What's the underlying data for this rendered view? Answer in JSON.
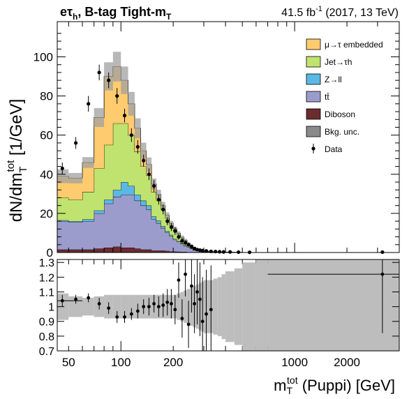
{
  "header": {
    "channel": "eτh, B-tag Tight-mT",
    "lumi": "41.5 fb⁻¹ (2017, 13 TeV)"
  },
  "chart_data": [
    {
      "type": "area",
      "stacked": true,
      "xscale": "log",
      "xlim": [
        43,
        4000
      ],
      "ylim": [
        0,
        118
      ],
      "ylabel": "dN/dm_T^tot [1/GeV]",
      "yticks": [
        0,
        20,
        40,
        60,
        80,
        100
      ],
      "legend_position": "top-right",
      "bin_edges": [
        43,
        50,
        60,
        70,
        80,
        90,
        100,
        110,
        120,
        130,
        140,
        150,
        160,
        170,
        180,
        190,
        200,
        210,
        220,
        230,
        240,
        250,
        260,
        270,
        280,
        290,
        300,
        320,
        340,
        360,
        380,
        400,
        450,
        500,
        600,
        700,
        4000
      ],
      "series": [
        {
          "name": "Diboson",
          "color": "#6b2b30",
          "values": [
            1.5,
            1.5,
            1.5,
            2.0,
            2.5,
            3.0,
            2.5,
            2.5,
            2.0,
            1.5,
            1.5,
            1.0,
            1.0,
            1.0,
            0.8,
            0.5,
            0.5,
            0.4,
            0.3,
            0.3,
            0.2,
            0.2,
            0.1,
            0.1,
            0.1,
            0.1,
            0,
            0,
            0,
            0,
            0,
            0,
            0,
            0,
            0,
            0
          ]
        },
        {
          "name": "tt̄",
          "color": "#9c9ccc",
          "values": [
            14.5,
            14.0,
            14.5,
            18.0,
            22.5,
            25.5,
            27.0,
            27.0,
            24.5,
            22.5,
            20.5,
            16.0,
            14.0,
            11.5,
            9.5,
            8.0,
            6.0,
            5.1,
            4.2,
            3.2,
            2.6,
            1.8,
            1.2,
            0.9,
            0.7,
            0.5,
            0.4,
            0.3,
            0.2,
            0.1,
            0.1,
            0.1,
            0,
            0,
            0,
            0
          ]
        },
        {
          "name": "Z→ll",
          "color": "#5bb8e5",
          "values": [
            0.5,
            0.5,
            1.0,
            1.5,
            2.0,
            3.5,
            6.5,
            4.5,
            3.0,
            2.5,
            2.0,
            1.5,
            1.2,
            1.0,
            0.7,
            0.5,
            0.4,
            0.3,
            0.2,
            0.1,
            0.1,
            0.1,
            0,
            0,
            0,
            0,
            0,
            0,
            0,
            0,
            0,
            0,
            0,
            0,
            0,
            0
          ]
        },
        {
          "name": "Jet→τh",
          "color": "#c0e36f",
          "values": [
            11.5,
            11.0,
            14.0,
            21.5,
            28.0,
            34.0,
            30.0,
            26.0,
            22.0,
            17.5,
            15.5,
            12.5,
            10.5,
            8.5,
            6.5,
            5.0,
            4.5,
            3.5,
            2.8,
            2.4,
            1.6,
            1.4,
            1.2,
            0.8,
            0.6,
            0.4,
            0.3,
            0.2,
            0.2,
            0.1,
            0.1,
            0.1,
            0.1,
            0,
            0,
            0
          ]
        },
        {
          "name": "μ→τ embedded",
          "color": "#fecb6f",
          "values": [
            11.0,
            11.0,
            15.0,
            26.0,
            35.0,
            29.0,
            22.0,
            16.0,
            12.0,
            8.0,
            5.5,
            4.0,
            3.0,
            2.0,
            1.5,
            1.0,
            0.8,
            0.6,
            0.4,
            0.3,
            0.2,
            0.2,
            0.1,
            0.1,
            0.1,
            0.1,
            0.1,
            0,
            0,
            0,
            0,
            0,
            0,
            0,
            0,
            0
          ]
        }
      ],
      "uncertainty": {
        "name": "Bkg. unc.",
        "color": "#a0a0a0",
        "rel_values": [
          0.09,
          0.07,
          0.06,
          0.07,
          0.08,
          0.08,
          0.08,
          0.08,
          0.08,
          0.08,
          0.08,
          0.08,
          0.08,
          0.08,
          0.08,
          0.08,
          0.08,
          0.09,
          0.1,
          0.11,
          0.12,
          0.13,
          0.14,
          0.15,
          0.16,
          0.17,
          0.18,
          0.18,
          0.19,
          0.2,
          0.22,
          0.24,
          0.26,
          0.3,
          0.5,
          0.5
        ]
      },
      "data": {
        "name": "Data",
        "x": [
          46,
          55,
          65,
          75,
          85,
          95,
          105,
          115,
          125,
          135,
          145,
          155,
          165,
          175,
          185,
          195,
          205,
          215,
          225,
          235,
          245,
          255,
          265,
          275,
          285,
          295,
          310,
          330,
          350,
          370,
          390,
          425,
          475,
          550,
          3200
        ],
        "y": [
          43,
          56,
          76,
          92,
          88,
          80,
          70,
          60,
          54,
          47,
          40,
          34,
          27,
          22,
          16,
          13,
          11,
          8,
          6,
          5,
          4,
          3,
          2,
          1.5,
          1.2,
          1,
          0.8,
          0.6,
          0.5,
          0.4,
          0.3,
          0.3,
          0.2,
          0.1,
          0.2
        ],
        "yerr": [
          3,
          3,
          4,
          4,
          4,
          4,
          3.5,
          3.5,
          3.5,
          3,
          3,
          3,
          2.5,
          2.5,
          2,
          2,
          2,
          1.5,
          1.5,
          1.2,
          1,
          1,
          0.8,
          0.7,
          0.6,
          0.5,
          0.4,
          0.3,
          0.3,
          0.3,
          0.2,
          0.2,
          0.15,
          0.1,
          0.15
        ]
      }
    },
    {
      "type": "scatter",
      "xscale": "log",
      "xlim": [
        43,
        4000
      ],
      "ylim": [
        0.7,
        1.32
      ],
      "xlabel": "m_T^tot (Puppi) [GeV]",
      "yticks": [
        0.7,
        0.8,
        0.9,
        1,
        1.1,
        1.2,
        1.3
      ],
      "xtick_labels": [
        "50",
        "100",
        "200",
        "1000",
        "2000"
      ],
      "unc_band_edges": [
        43,
        50,
        60,
        70,
        80,
        90,
        100,
        110,
        120,
        130,
        140,
        150,
        160,
        170,
        180,
        190,
        200,
        210,
        220,
        230,
        240,
        250,
        260,
        270,
        280,
        290,
        300,
        320,
        340,
        360,
        380,
        400,
        450,
        500,
        600,
        700,
        4000
      ],
      "ratio": {
        "x": [
          46,
          55,
          65,
          75,
          85,
          95,
          105,
          115,
          125,
          135,
          145,
          155,
          165,
          175,
          185,
          195,
          205,
          215,
          225,
          235,
          245,
          255,
          265,
          275,
          285,
          295,
          310,
          330,
          3200
        ],
        "y": [
          1.04,
          1.05,
          1.06,
          1.02,
          0.99,
          0.93,
          0.93,
          0.95,
          0.97,
          1.0,
          1.0,
          1.02,
          1.0,
          1.01,
          1.03,
          1.02,
          0.98,
          1.18,
          0.92,
          1.22,
          0.88,
          1.14,
          1.02,
          1.1,
          1.05,
          0.9,
          0.95,
          0.98,
          1.22
        ],
        "yerr": [
          0.04,
          0.03,
          0.03,
          0.04,
          0.04,
          0.04,
          0.04,
          0.04,
          0.05,
          0.05,
          0.06,
          0.06,
          0.07,
          0.08,
          0.09,
          0.1,
          0.1,
          0.12,
          0.13,
          0.15,
          0.16,
          0.18,
          0.2,
          0.22,
          0.25,
          0.3,
          0.3,
          0.3,
          0.4
        ]
      }
    }
  ]
}
